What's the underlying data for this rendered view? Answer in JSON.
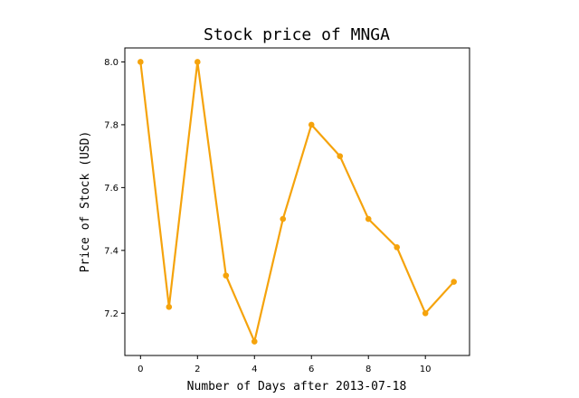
{
  "chart_data": {
    "type": "line",
    "title": "Stock price of MNGA",
    "xlabel": "Number of Days after 2013-07-18",
    "ylabel": "Price of Stock (USD)",
    "x": [
      0,
      1,
      2,
      3,
      4,
      5,
      6,
      7,
      8,
      9,
      10,
      11
    ],
    "series": [
      {
        "values": [
          8.0,
          7.22,
          8.0,
          7.32,
          7.11,
          7.5,
          7.8,
          7.7,
          7.5,
          7.41,
          7.2,
          7.3
        ],
        "color": "#f5a30c"
      }
    ],
    "xlim": [
      -0.55,
      11.55
    ],
    "ylim": [
      7.0655,
      8.0445
    ],
    "xticks": [
      0,
      2,
      4,
      6,
      8,
      10
    ],
    "yticks": [
      7.2,
      7.4,
      7.6,
      7.8,
      8.0
    ],
    "xtick_labels": [
      "0",
      "2",
      "4",
      "6",
      "8",
      "10"
    ],
    "ytick_labels": [
      "7.2",
      "7.4",
      "7.6",
      "7.8",
      "8.0"
    ],
    "grid": false,
    "legend": false
  }
}
